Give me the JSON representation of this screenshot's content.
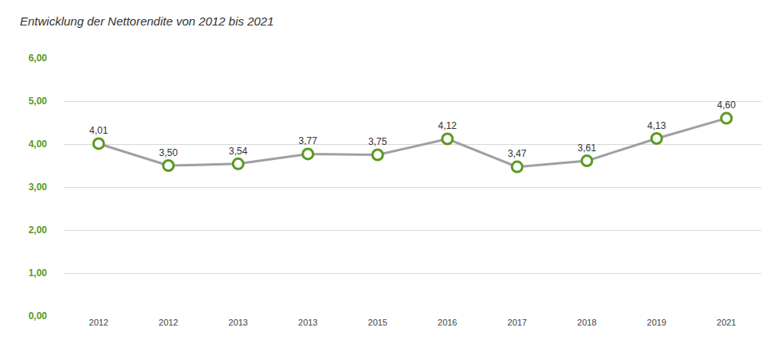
{
  "chart_data": {
    "type": "line",
    "title": "Entwicklung der Nettorendite von 2012 bis 2021",
    "categories": [
      "2012",
      "2012",
      "2013",
      "2013",
      "2015",
      "2016",
      "2017",
      "2018",
      "2019",
      "2021"
    ],
    "values": [
      4.01,
      3.5,
      3.54,
      3.77,
      3.75,
      4.12,
      3.47,
      3.61,
      4.13,
      4.6
    ],
    "value_labels": [
      "4,01",
      "3,50",
      "3,54",
      "3,77",
      "3,75",
      "4,12",
      "3,47",
      "3,61",
      "4,13",
      "4,60"
    ],
    "data_labels": true,
    "color": "#a09fa7",
    "marker": "circle",
    "ylim": [
      0,
      6
    ],
    "yticks": [
      {
        "value": 0,
        "label": "0,00"
      },
      {
        "value": 1,
        "label": "1,00"
      },
      {
        "value": 2,
        "label": "2,00"
      },
      {
        "value": 3,
        "label": "3,00"
      },
      {
        "value": 4,
        "label": "4,00"
      },
      {
        "value": 5,
        "label": "5,00"
      },
      {
        "value": 6,
        "label": "6,00"
      }
    ],
    "grid": true
  }
}
